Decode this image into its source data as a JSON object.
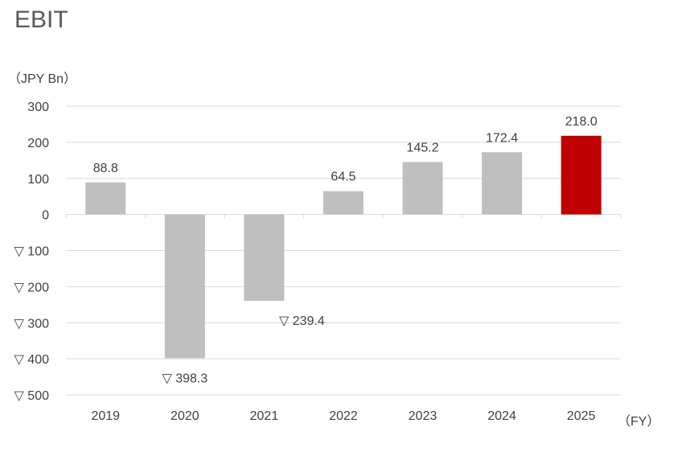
{
  "title": "EBIT",
  "chart_data": {
    "type": "bar",
    "title": "EBIT",
    "unit_label": "（JPY Bn）",
    "xlabel": "（FY）",
    "ylabel": "",
    "ylim": [
      -500,
      300
    ],
    "y_ticks": [
      300,
      200,
      100,
      0,
      -100,
      -200,
      -300,
      -400,
      -500
    ],
    "y_tick_labels": [
      "300",
      "200",
      "100",
      "0",
      "▽ 100",
      "▽ 200",
      "▽ 300",
      "▽ 400",
      "▽ 500"
    ],
    "grid": true,
    "categories": [
      "2019",
      "2020",
      "2021",
      "2022",
      "2023",
      "2024",
      "2025"
    ],
    "values": [
      88.8,
      -398.3,
      -239.4,
      64.5,
      145.2,
      172.4,
      218.0
    ],
    "data_labels": [
      "88.8",
      "▽ 398.3",
      "▽ 239.4",
      "64.5",
      "145.2",
      "172.4",
      "218.0"
    ],
    "colors": [
      "#bfbfbf",
      "#bfbfbf",
      "#bfbfbf",
      "#bfbfbf",
      "#bfbfbf",
      "#bfbfbf",
      "#c00000"
    ],
    "grid_color": "#d9d9d9"
  }
}
